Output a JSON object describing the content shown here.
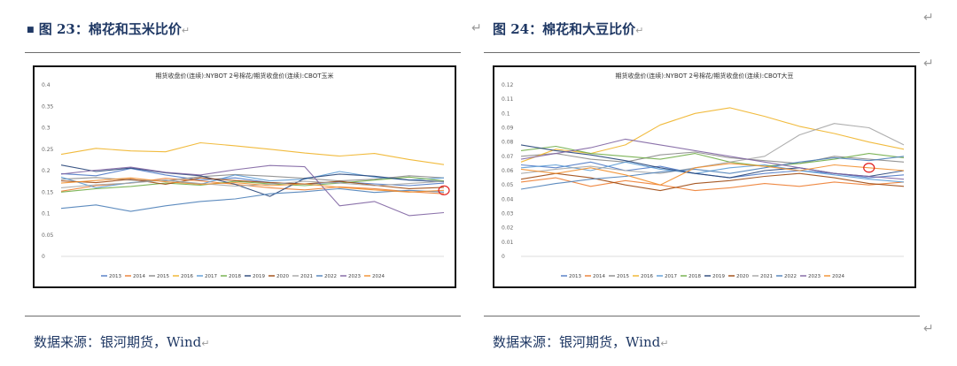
{
  "figures": [
    {
      "bullet": "■",
      "label": "图 23：",
      "title": "棉花和玉米比价",
      "return_mark": "↵",
      "source": "数据来源：银河期货，Wind",
      "source_mark": "↵",
      "chart_data": {
        "type": "line",
        "title": "期货收盘价(连续):NYBOT 2号棉花/期货收盘价(连续):CBOT玉米",
        "ylim": [
          0,
          0.4
        ],
        "yticks": [
          "0",
          "0.05",
          "0.1",
          "0.15",
          "0.2",
          "0.25",
          "0.3",
          "0.35",
          "0.4"
        ],
        "legend_position": "bottom",
        "grid": false,
        "x_count": 12,
        "series": [
          {
            "name": "2013",
            "color": "#4e79c5",
            "values": [
              0.193,
              0.188,
              0.205,
              0.19,
              0.178,
              0.183,
              0.172,
              0.168,
              0.174,
              0.169,
              0.165,
              0.171
            ]
          },
          {
            "name": "2014",
            "color": "#ed7d31",
            "values": [
              0.152,
              0.165,
              0.171,
              0.182,
              0.176,
              0.168,
              0.16,
              0.155,
              0.162,
              0.158,
              0.151,
              0.146
            ]
          },
          {
            "name": "2015",
            "color": "#8a8a8a",
            "values": [
              0.18,
              0.184,
              0.178,
              0.176,
              0.186,
              0.191,
              0.187,
              0.182,
              0.176,
              0.18,
              0.188,
              0.183
            ]
          },
          {
            "name": "2016",
            "color": "#f0b429",
            "values": [
              0.238,
              0.252,
              0.246,
              0.244,
              0.265,
              0.258,
              0.25,
              0.241,
              0.234,
              0.24,
              0.226,
              0.214
            ]
          },
          {
            "name": "2017",
            "color": "#5b9bd5",
            "values": [
              0.185,
              0.16,
              0.172,
              0.178,
              0.168,
              0.19,
              0.176,
              0.18,
              0.198,
              0.185,
              0.178,
              0.183
            ]
          },
          {
            "name": "2018",
            "color": "#70ad47",
            "values": [
              0.15,
              0.158,
              0.163,
              0.171,
              0.166,
              0.175,
              0.169,
              0.165,
              0.171,
              0.178,
              0.185,
              0.176
            ]
          },
          {
            "name": "2019",
            "color": "#264478",
            "values": [
              0.213,
              0.198,
              0.206,
              0.195,
              0.188,
              0.168,
              0.14,
              0.182,
              0.192,
              0.187,
              0.178,
              0.174
            ]
          },
          {
            "name": "2020",
            "color": "#9e480e",
            "values": [
              0.176,
              0.172,
              0.18,
              0.168,
              0.183,
              0.177,
              0.172,
              0.169,
              0.175,
              0.166,
              0.158,
              0.161
            ]
          },
          {
            "name": "2021",
            "color": "#a5a5a5",
            "values": [
              0.16,
              0.167,
              0.171,
              0.178,
              0.17,
              0.164,
              0.168,
              0.175,
              0.171,
              0.165,
              0.17,
              0.175
            ]
          },
          {
            "name": "2022",
            "color": "#4d7fb8",
            "values": [
              0.112,
              0.12,
              0.105,
              0.118,
              0.128,
              0.134,
              0.146,
              0.151,
              0.158,
              0.149,
              0.154,
              0.15
            ]
          },
          {
            "name": "2023",
            "color": "#8064a2",
            "values": [
              0.192,
              0.201,
              0.208,
              0.196,
              0.19,
              0.202,
              0.212,
              0.209,
              0.118,
              0.128,
              0.095,
              0.102
            ]
          },
          {
            "name": "2024",
            "color": "#f28e2b",
            "values": [
              0.171,
              0.177,
              0.183,
              0.174,
              0.168,
              0.172,
              0.165,
              0.169,
              0.161,
              0.155,
              0.15,
              0.154
            ]
          }
        ],
        "highlight": {
          "series": "2024",
          "index": 11,
          "color": "#e02020"
        }
      }
    },
    {
      "bullet": "",
      "label": "图 24：",
      "title": "棉花和大豆比价",
      "return_mark": "↵",
      "source": "数据来源：银河期货，Wind",
      "source_mark": "↵",
      "chart_data": {
        "type": "line",
        "title": "期货收盘价(连续):NYBOT 2号棉花/期货收盘价(连续):CBOT大豆",
        "ylim": [
          0,
          0.12
        ],
        "yticks": [
          "0",
          "0.01",
          "0.02",
          "0.03",
          "0.04",
          "0.05",
          "0.06",
          "0.07",
          "0.08",
          "0.09",
          "0.1",
          "0.11",
          "0.12"
        ],
        "legend_position": "bottom",
        "grid": false,
        "x_count": 12,
        "series": [
          {
            "name": "2013",
            "color": "#4e79c5",
            "values": [
              0.064,
              0.062,
              0.066,
              0.06,
              0.063,
              0.058,
              0.055,
              0.058,
              0.06,
              0.058,
              0.055,
              0.057
            ]
          },
          {
            "name": "2014",
            "color": "#ed7d31",
            "values": [
              0.052,
              0.055,
              0.049,
              0.053,
              0.05,
              0.046,
              0.048,
              0.051,
              0.049,
              0.052,
              0.05,
              0.052
            ]
          },
          {
            "name": "2015",
            "color": "#8a8a8a",
            "values": [
              0.07,
              0.072,
              0.068,
              0.066,
              0.071,
              0.073,
              0.069,
              0.067,
              0.065,
              0.07,
              0.068,
              0.066
            ]
          },
          {
            "name": "2016",
            "color": "#f0b429",
            "values": [
              0.066,
              0.075,
              0.072,
              0.078,
              0.092,
              0.1,
              0.104,
              0.098,
              0.091,
              0.086,
              0.08,
              0.075
            ]
          },
          {
            "name": "2017",
            "color": "#5b9bd5",
            "values": [
              0.062,
              0.064,
              0.06,
              0.066,
              0.061,
              0.058,
              0.062,
              0.064,
              0.06,
              0.057,
              0.054,
              0.052
            ]
          },
          {
            "name": "2018",
            "color": "#70ad47",
            "values": [
              0.074,
              0.077,
              0.072,
              0.07,
              0.068,
              0.072,
              0.066,
              0.063,
              0.065,
              0.068,
              0.072,
              0.069
            ]
          },
          {
            "name": "2019",
            "color": "#264478",
            "values": [
              0.078,
              0.074,
              0.071,
              0.067,
              0.062,
              0.058,
              0.055,
              0.06,
              0.062,
              0.058,
              0.056,
              0.06
            ]
          },
          {
            "name": "2020",
            "color": "#9e480e",
            "values": [
              0.054,
              0.058,
              0.055,
              0.05,
              0.046,
              0.051,
              0.053,
              0.056,
              0.058,
              0.055,
              0.051,
              0.049
            ]
          },
          {
            "name": "2021",
            "color": "#a5a5a5",
            "values": [
              0.058,
              0.061,
              0.063,
              0.06,
              0.058,
              0.062,
              0.066,
              0.07,
              0.085,
              0.093,
              0.09,
              0.078
            ]
          },
          {
            "name": "2022",
            "color": "#4d7fb8",
            "values": [
              0.047,
              0.051,
              0.054,
              0.056,
              0.059,
              0.061,
              0.058,
              0.062,
              0.066,
              0.069,
              0.067,
              0.07
            ]
          },
          {
            "name": "2023",
            "color": "#8064a2",
            "values": [
              0.068,
              0.072,
              0.076,
              0.082,
              0.078,
              0.074,
              0.07,
              0.066,
              0.062,
              0.058,
              0.056,
              0.054
            ]
          },
          {
            "name": "2024",
            "color": "#f28e2b",
            "values": [
              0.061,
              0.058,
              0.062,
              0.057,
              0.05,
              0.062,
              0.065,
              0.063,
              0.06,
              0.064,
              0.062,
              0.06
            ]
          }
        ],
        "highlight": {
          "series": "2024",
          "index": 10,
          "color": "#e02020"
        }
      }
    }
  ],
  "edge_marks": [
    "↵",
    "↵",
    "↵",
    "↵"
  ]
}
